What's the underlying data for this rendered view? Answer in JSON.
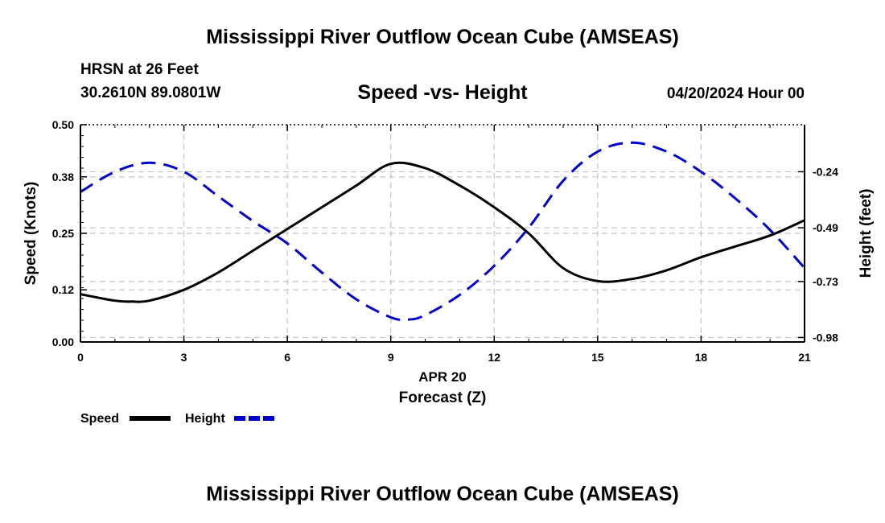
{
  "header": {
    "title": "Mississippi River Outflow Ocean Cube (AMSEAS)",
    "station": "HRSN at 26 Feet",
    "coords": "30.2610N  89.0801W",
    "subtitle": "Speed -vs- Height",
    "datetime": "04/20/2024 Hour 00"
  },
  "footer": {
    "title": "Mississippi River Outflow Ocean Cube (AMSEAS)"
  },
  "chart_data": {
    "type": "line",
    "x_date_label": "APR 20",
    "xlabel": "Forecast (Z)",
    "ylabel_left": "Speed (Knots)",
    "ylabel_right": "Height (feet)",
    "xlim": [
      0,
      21
    ],
    "x_ticks": [
      "0",
      "3",
      "6",
      "9",
      "12",
      "15",
      "18",
      "21"
    ],
    "ylim_left": [
      0,
      0.5
    ],
    "y_ticks_left": [
      "0.00",
      "0.12",
      "0.25",
      "0.38",
      "0.50"
    ],
    "ylim_right": [
      -1.0,
      -0.03
    ],
    "y_ticks_right": [
      "-0.24",
      "-0.49",
      "-0.73",
      "-0.98"
    ],
    "grid": true,
    "legend_position": "bottom-left",
    "series": [
      {
        "name": "Speed",
        "axis": "left",
        "color": "#000000",
        "style": "solid",
        "x": [
          0,
          1,
          1.5,
          2,
          3,
          4,
          5,
          6,
          7,
          8,
          9,
          10,
          11,
          12,
          13,
          14,
          15,
          16,
          17,
          18,
          19,
          20,
          21
        ],
        "values": [
          0.11,
          0.095,
          0.093,
          0.095,
          0.12,
          0.16,
          0.21,
          0.26,
          0.31,
          0.36,
          0.41,
          0.4,
          0.36,
          0.31,
          0.25,
          0.17,
          0.14,
          0.145,
          0.165,
          0.195,
          0.22,
          0.245,
          0.28
        ]
      },
      {
        "name": "Height",
        "axis": "right",
        "color": "#0000cc",
        "style": "dashed",
        "x": [
          0,
          1,
          2,
          3,
          4,
          5,
          6,
          7,
          8,
          9,
          9.5,
          10,
          11,
          12,
          13,
          14,
          15,
          16,
          17,
          18,
          19,
          20,
          21
        ],
        "values": [
          -0.33,
          -0.24,
          -0.2,
          -0.24,
          -0.35,
          -0.46,
          -0.56,
          -0.69,
          -0.81,
          -0.89,
          -0.9,
          -0.88,
          -0.79,
          -0.66,
          -0.49,
          -0.28,
          -0.15,
          -0.11,
          -0.15,
          -0.24,
          -0.36,
          -0.5,
          -0.67
        ]
      }
    ]
  }
}
